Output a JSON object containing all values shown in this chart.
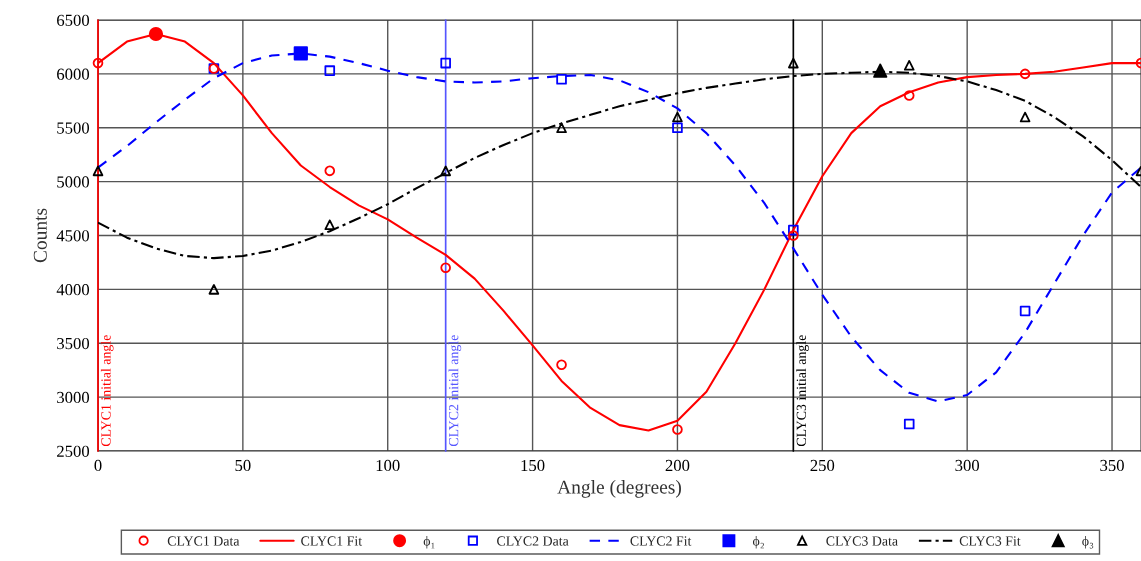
{
  "chart_data": {
    "type": "scatter",
    "xlabel": "Angle (degrees)",
    "ylabel": "Counts",
    "xlim": [
      0,
      360
    ],
    "xticks": [
      0,
      50,
      100,
      150,
      200,
      250,
      300,
      350
    ],
    "ylim": [
      2500,
      6500
    ],
    "yticks": [
      2500,
      3000,
      3500,
      4000,
      4500,
      5000,
      5500,
      6000,
      6500
    ],
    "grid": true,
    "legend": "bottom",
    "series": [
      {
        "name": "CLYC1 Data",
        "marker": "circle",
        "color": "#ff0000",
        "x": [
          0,
          40,
          80,
          120,
          160,
          200,
          240,
          280,
          320,
          360
        ],
        "values": [
          6100,
          6050,
          5100,
          4200,
          3300,
          2700,
          4500,
          5800,
          6000,
          6100
        ]
      },
      {
        "name": "CLYC1 Fit",
        "type": "line",
        "line_style": "solid",
        "color": "#ff0000",
        "x": [
          0,
          10,
          20,
          30,
          40,
          50,
          60,
          70,
          80,
          90,
          100,
          110,
          120,
          130,
          140,
          150,
          160,
          170,
          180,
          190,
          200,
          210,
          220,
          230,
          240,
          250,
          260,
          270,
          280,
          290,
          300,
          310,
          320,
          330,
          340,
          350,
          360
        ],
        "values": [
          6100,
          6300,
          6370,
          6300,
          6100,
          5800,
          5450,
          5150,
          4950,
          4780,
          4650,
          4480,
          4320,
          4100,
          3800,
          3480,
          3150,
          2900,
          2740,
          2690,
          2780,
          3050,
          3500,
          4000,
          4550,
          5050,
          5450,
          5700,
          5830,
          5920,
          5970,
          5990,
          6000,
          6020,
          6060,
          6100,
          6100
        ]
      },
      {
        "name": "ϕ₁",
        "marker": "circle",
        "color": "#ff0000",
        "x": [
          20
        ],
        "values": [
          6370
        ]
      },
      {
        "name": "CLYC2 Data",
        "marker": "square",
        "color": "#0000ff",
        "x": [
          40,
          80,
          120,
          160,
          200,
          240,
          280,
          320
        ],
        "values": [
          6050,
          6030,
          6100,
          5950,
          5500,
          4550,
          2750,
          3800
        ]
      },
      {
        "name": "CLYC2 Fit",
        "type": "line",
        "line_style": "dashed",
        "color": "#0000ff",
        "x": [
          0,
          10,
          20,
          30,
          40,
          50,
          60,
          70,
          80,
          90,
          100,
          110,
          120,
          130,
          140,
          150,
          160,
          170,
          180,
          190,
          200,
          210,
          220,
          230,
          240,
          250,
          260,
          270,
          280,
          290,
          300,
          310,
          320,
          330,
          340,
          350,
          360
        ],
        "values": [
          5130,
          5330,
          5550,
          5760,
          5960,
          6100,
          6170,
          6190,
          6160,
          6100,
          6030,
          5970,
          5930,
          5920,
          5930,
          5960,
          5980,
          5990,
          5940,
          5830,
          5680,
          5450,
          5150,
          4800,
          4380,
          3950,
          3560,
          3250,
          3040,
          2960,
          3020,
          3230,
          3600,
          4050,
          4500,
          4900,
          5130
        ]
      },
      {
        "name": "ϕ₂",
        "marker": "square",
        "color": "#0000ff",
        "x": [
          70
        ],
        "values": [
          6190
        ]
      },
      {
        "name": "CLYC3 Data",
        "marker": "triangle",
        "color": "#000000",
        "x": [
          0,
          40,
          80,
          120,
          160,
          200,
          240,
          280,
          320,
          360
        ],
        "values": [
          5100,
          4000,
          4600,
          5100,
          5500,
          5600,
          6100,
          6080,
          5600,
          5100
        ]
      },
      {
        "name": "CLYC3 Fit",
        "type": "line",
        "line_style": "dashdot",
        "color": "#000000",
        "x": [
          0,
          10,
          20,
          30,
          40,
          50,
          60,
          70,
          80,
          90,
          100,
          110,
          120,
          130,
          140,
          150,
          160,
          170,
          180,
          190,
          200,
          210,
          220,
          230,
          240,
          250,
          260,
          270,
          280,
          290,
          300,
          310,
          320,
          330,
          340,
          350,
          360
        ],
        "values": [
          4620,
          4480,
          4380,
          4310,
          4290,
          4310,
          4360,
          4440,
          4540,
          4660,
          4790,
          4940,
          5080,
          5220,
          5340,
          5450,
          5540,
          5620,
          5700,
          5760,
          5820,
          5870,
          5910,
          5950,
          5980,
          6000,
          6010,
          6020,
          6010,
          5980,
          5930,
          5850,
          5750,
          5600,
          5420,
          5200,
          4950
        ]
      },
      {
        "name": "ϕ₃",
        "marker": "triangle",
        "color": "#000000",
        "x": [
          270
        ],
        "values": [
          6030
        ]
      }
    ],
    "ref_lines": [
      {
        "axis": "x",
        "value": 0,
        "label": "CLYC1 initial angle",
        "color": "#ff0000"
      },
      {
        "axis": "x",
        "value": 120,
        "label": "CLYC2 initial angle",
        "color": "#5555ff"
      },
      {
        "axis": "x",
        "value": 240,
        "label": "CLYC3 initial angle",
        "color": "#000000"
      }
    ]
  }
}
